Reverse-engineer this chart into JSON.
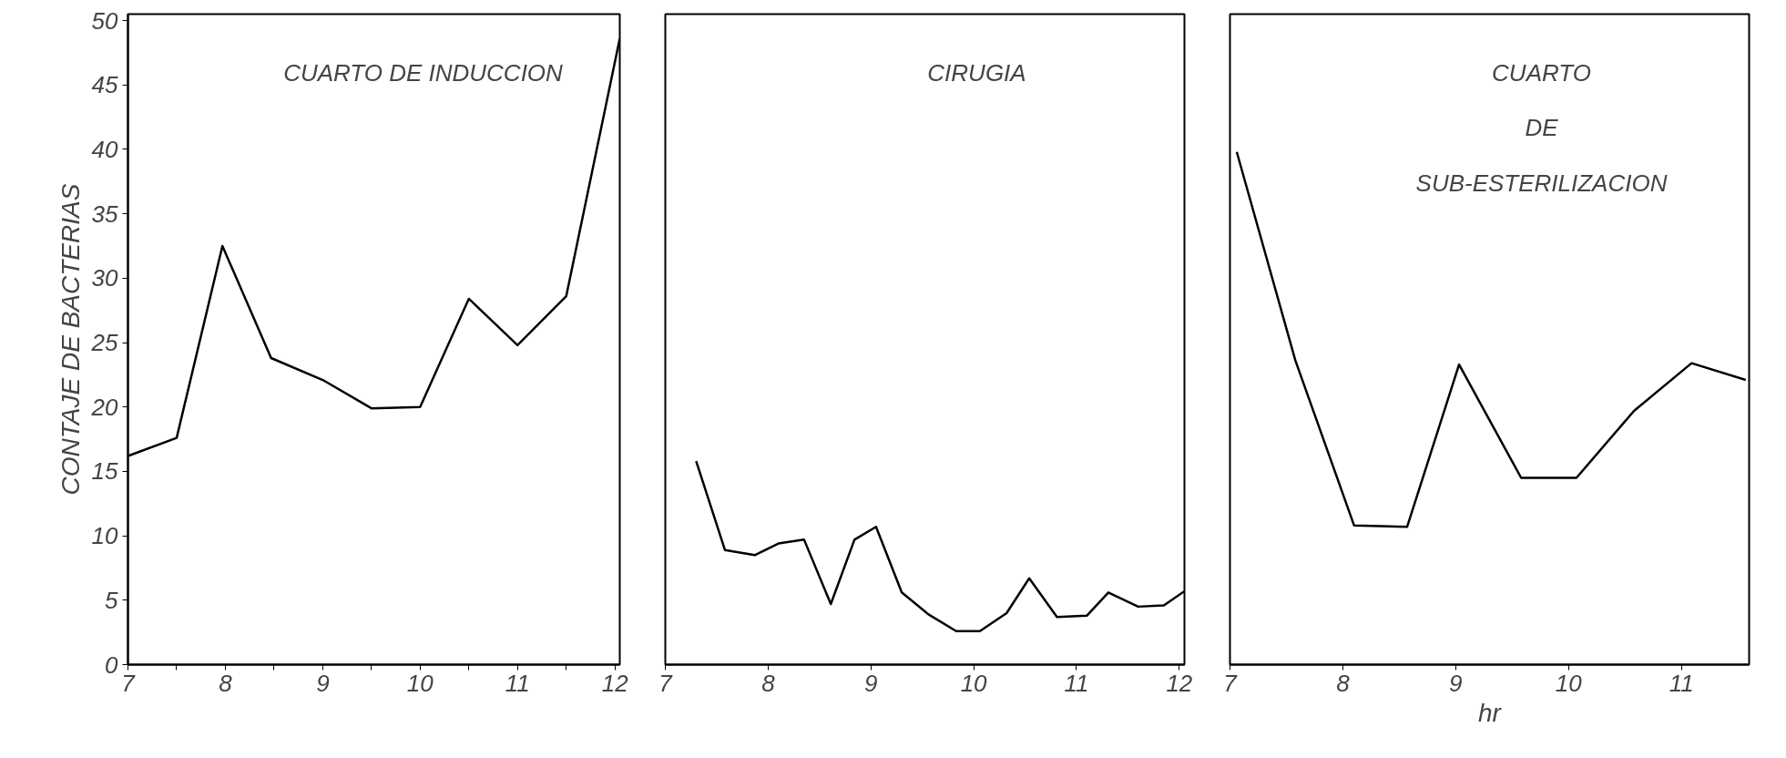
{
  "chart_data": [
    {
      "type": "line",
      "title": "CUARTO DE INDUCCION",
      "ylabel": "CONTAJE DE BACTERIAS",
      "xlim": [
        7,
        12.05
      ],
      "ylim": [
        0,
        50.5
      ],
      "xticks": [
        7,
        {
          "value": 7.5,
          "label": null
        },
        8,
        {
          "value": 8.5,
          "label": null
        },
        9,
        {
          "value": 9.5,
          "label": null
        },
        10,
        {
          "value": 10.5,
          "label": null
        },
        11,
        {
          "value": 11.5,
          "label": null
        },
        12
      ],
      "yticks": [
        0,
        5,
        10,
        15,
        20,
        25,
        30,
        35,
        40,
        45,
        50
      ],
      "series": [
        {
          "color": "#000000",
          "x": [
            7,
            7.5,
            7.97,
            8.47,
            9,
            9.5,
            10,
            10.5,
            11,
            11.5,
            12.05
          ],
          "values": [
            16.2,
            17.6,
            32.5,
            23.8,
            22.1,
            19.9,
            20.0,
            28.4,
            24.8,
            28.6,
            48.6
          ]
        }
      ]
    },
    {
      "type": "line",
      "title": "CIRUGIA",
      "xlim": [
        7,
        12.05
      ],
      "ylim": [
        0,
        50.5
      ],
      "tick_labels": "x",
      "xticks": [
        7,
        8,
        9,
        10,
        11,
        12
      ],
      "series": [
        {
          "color": "#000000",
          "x": [
            7.3,
            7.58,
            7.87,
            8.1,
            8.35,
            8.61,
            8.84,
            9.05,
            9.3,
            9.56,
            9.83,
            10.06,
            10.32,
            10.54,
            10.81,
            11.1,
            11.31,
            11.6,
            11.85,
            12.05
          ],
          "values": [
            15.8,
            8.9,
            8.5,
            9.4,
            9.7,
            4.7,
            9.7,
            10.7,
            5.6,
            3.9,
            2.6,
            2.6,
            4.0,
            6.7,
            3.7,
            3.8,
            5.6,
            4.5,
            4.6,
            5.7
          ]
        }
      ]
    },
    {
      "type": "line",
      "title": "CUARTO\nDE\nSUB-ESTERILIZACION",
      "xlabel": "hr",
      "xlim": [
        7,
        11.6
      ],
      "ylim": [
        0,
        50.5
      ],
      "tick_labels": "x",
      "xticks": [
        7,
        8,
        9,
        10,
        11
      ],
      "series": [
        {
          "color": "#000000",
          "x": [
            7.06,
            7.58,
            8.1,
            8.57,
            9.03,
            9.58,
            10.07,
            10.58,
            11.09,
            11.57
          ],
          "values": [
            39.8,
            23.6,
            10.8,
            10.7,
            23.3,
            14.5,
            14.5,
            19.7,
            23.4,
            22.1
          ]
        }
      ]
    }
  ]
}
